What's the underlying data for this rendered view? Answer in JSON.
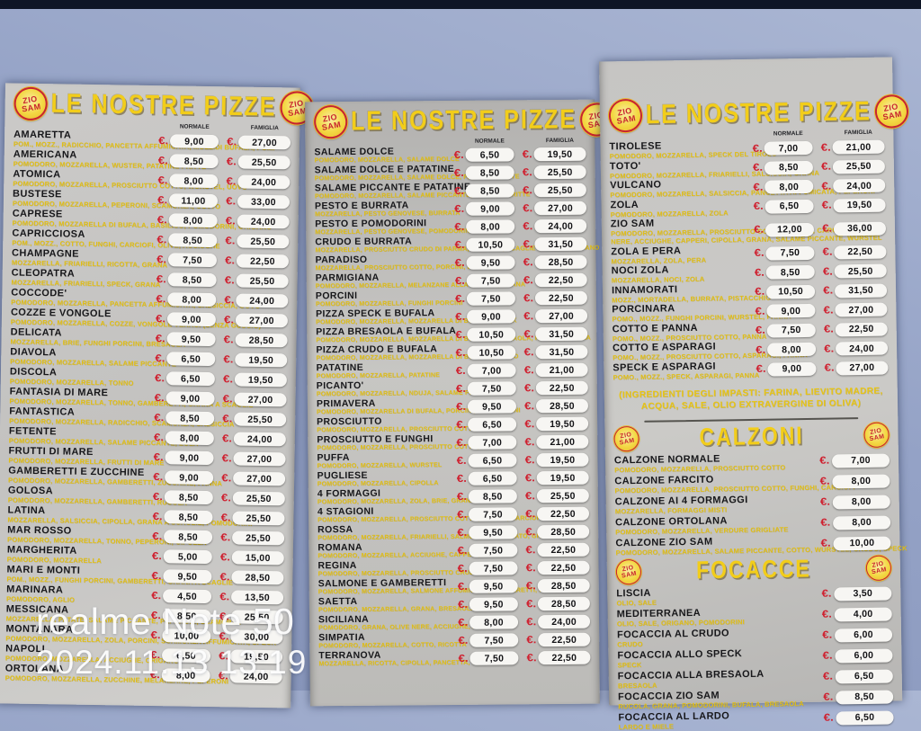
{
  "labels": {
    "normale": "NORMALE",
    "famiglia": "FAMIGLIA",
    "currency": "€."
  },
  "logo": {
    "top": "ZIO",
    "bottom": "SAM"
  },
  "watermark": {
    "model": "realme Note 50",
    "timestamp": "2024.11.13 13:19"
  },
  "colors": {
    "accent_yellow": "#f2cd1a",
    "accent_red": "#c8242f",
    "pill_white": "#f7f6f3",
    "wall_blue": "#94a2c6",
    "top_bar_navy": "#0e1526",
    "panel_grey": "#c5c4c2",
    "name_black": "#17171a"
  },
  "panel_left": {
    "title": "LE NOSTRE PIZZE",
    "items": [
      {
        "name": "AMARETTA",
        "ing": "POM., MOZZ., RADICCHIO, PANCETTA AFFUMICATA, MOZZ.DI BUFALA, POM.",
        "n": "9,00",
        "f": "27,00"
      },
      {
        "name": "AMERICANA",
        "ing": "POMODORO, MOZZARELLA, WUSTER, PATATINE FRITTE",
        "n": "8,50",
        "f": "25,50"
      },
      {
        "name": "ATOMICA",
        "ing": "POMODORO, MOZZARELLA, PROSCIUTTO COTTO, WURSTEL, UOVO",
        "n": "8,00",
        "f": "24,00"
      },
      {
        "name": "BUSTESE",
        "ing": "POMODORO, MOZZARELLA, PEPERONI, SCAMORZA, COTTO",
        "n": "11,00",
        "f": "33,00"
      },
      {
        "name": "CAPRESE",
        "ing": "POMODORO, MOZZARELLA DI BUFALA, BASILICO, POMODORINI, ORIGANO",
        "n": "8,00",
        "f": "24,00"
      },
      {
        "name": "CAPRICCIOSA",
        "ing": "POM., MOZZ., COTTO, FUNGHI, CARCIOFI, OLIVE, ACCIUGHE",
        "n": "8,50",
        "f": "25,50"
      },
      {
        "name": "CHAMPAGNE",
        "ing": "MOZZARELLA, FRIARIELLI, RICOTTA, GRANA",
        "n": "7,50",
        "f": "22,50"
      },
      {
        "name": "CLEOPATRA",
        "ing": "MOZZARELLA, FRIARIELLI, SPECK, GRANA",
        "n": "8,50",
        "f": "25,50"
      },
      {
        "name": "COCCODE'",
        "ing": "POMODORO, MOZZARELLA, PANCETTA AFFUMICATA, SALSICCIA, UOVO",
        "n": "8,00",
        "f": "24,00"
      },
      {
        "name": "COZZE E VONGOLE",
        "ing": "POMODORO, MOZZARELLA, COZZE, VONGOLE VERACI (SENZA GUSCIO)",
        "n": "9,00",
        "f": "27,00"
      },
      {
        "name": "DELICATA",
        "ing": "MOZZARELLA, BRIE, FUNGHI PORCINI, BRESAOLA",
        "n": "9,50",
        "f": "28,50"
      },
      {
        "name": "DIAVOLA",
        "ing": "POMODORO, MOZZARELLA, SALAME PICCANTE",
        "n": "6,50",
        "f": "19,50"
      },
      {
        "name": "DISCOLA",
        "ing": "POMODORO, MOZZARELLA, TONNO",
        "n": "6,50",
        "f": "19,50"
      },
      {
        "name": "FANTASIA DI MARE",
        "ing": "POMODORO, MOZZARELLA, TONNO, GAMBERETTI, GRANA A SCAGLIE",
        "n": "9,00",
        "f": "27,00"
      },
      {
        "name": "FANTASTICA",
        "ing": "POMODORO, MOZZARELLA, RADICCHIO, SCAMORZA, SALSICCIA",
        "n": "8,50",
        "f": "25,50"
      },
      {
        "name": "FETENTE",
        "ing": "POMODORO, MOZZARELLA, SALAME PICCANTE, ZOLA",
        "n": "8,00",
        "f": "24,00"
      },
      {
        "name": "FRUTTI DI MARE",
        "ing": "POMODORO, MOZZARELLA, FRUTTI DI MARE",
        "n": "9,00",
        "f": "27,00"
      },
      {
        "name": "GAMBERETTI E ZUCCHINE",
        "ing": "POMODORO, MOZZARELLA, GAMBERETTI, ZUCCHINE, PANNA",
        "n": "9,00",
        "f": "27,00"
      },
      {
        "name": "GOLOSA",
        "ing": "POMODORO, MOZZARELLA, GAMBERETTI, RUCOLA",
        "n": "8,50",
        "f": "25,50"
      },
      {
        "name": "LATINA",
        "ing": "MOZZARELLA, SALSICCIA, CIPOLLA, GRANA A SCAGLIE, POMODORINI",
        "n": "8,50",
        "f": "25,50"
      },
      {
        "name": "MAR ROSSO",
        "ing": "POMODORO, MOZZARELLA, TONNO, PEPERONI, CIPOLLA",
        "n": "8,50",
        "f": "25,50"
      },
      {
        "name": "MARGHERITA",
        "ing": "POMODORO, MOZZARELLA",
        "n": "5,00",
        "f": "15,00"
      },
      {
        "name": "MARI E MONTI",
        "ing": "POM., MOZZ., FUNGHI PORCINI, GAMBERETTI, GRANA A SCAGLIE",
        "n": "9,50",
        "f": "28,50"
      },
      {
        "name": "MARINARA",
        "ing": "POMODORO, AGLIO",
        "n": "4,50",
        "f": "13,50"
      },
      {
        "name": "MESSICANA",
        "ing": "MOZZARELLA, PATATE, SALAME PICCANTE, PEPERONI, SCAMORZA",
        "n": "8,50",
        "f": "25,50"
      },
      {
        "name": "MONTANARA",
        "ing": "POMODORO, MOZZARELLA, ZOLA, PORCINI, SCAMORZA AFFUMICATA, SPECK",
        "n": "10,00",
        "f": "30,00"
      },
      {
        "name": "NAPOLI",
        "ing": "POMODORO, MOZZARELLA, ACCIUGHE, ORIGANO",
        "n": "6,50",
        "f": "19,50"
      },
      {
        "name": "ORTOLANA",
        "ing": "POMODORO, MOZZARELLA, ZUCCHINE, MELANZANE, PEPERONI",
        "n": "8,00",
        "f": "24,00"
      }
    ]
  },
  "panel_middle": {
    "title": "LE NOSTRE PIZZE",
    "items": [
      {
        "name": "SALAME DOLCE",
        "ing": "POMODORO, MOZZARELLA, SALAME DOLCE",
        "n": "6,50",
        "f": "19,50"
      },
      {
        "name": "SALAME DOLCE E PATATINE",
        "ing": "POMODORO, MOZZARELLA, SALAME DOLCE, PATATINE FRITTE",
        "n": "8,50",
        "f": "25,50"
      },
      {
        "name": "SALAME PICCANTE E PATATINE",
        "ing": "POMODORO, MOZZARELLA, SALAME PICCANTE, PATATINE FRITTE",
        "n": "8,50",
        "f": "25,50"
      },
      {
        "name": "PESTO E BURRATA",
        "ing": "MOZZARELLA, PESTO GENOVESE, BURRATA",
        "n": "9,00",
        "f": "27,00"
      },
      {
        "name": "PESTO E POMODORINI",
        "ing": "MOZZARELLA, PESTO GENOVESE, POMODORINI",
        "n": "8,00",
        "f": "24,00"
      },
      {
        "name": "CRUDO E BURRATA",
        "ing": "MOZZARELLA, PROSCIUTTO CRUDO DI PARMA, BURRATA, SCAGLIE DI GRANA PADANO",
        "n": "10,50",
        "f": "31,50"
      },
      {
        "name": "PARADISO",
        "ing": "MOZZARELLA, PROSCIUTTO COTTO, PORCINI, BRIE",
        "n": "9,50",
        "f": "28,50"
      },
      {
        "name": "PARMIGIANA",
        "ing": "POMODORO, MOZZARELLA, MELANZANE ALLA GRIGLIA, GRANA",
        "n": "7,50",
        "f": "22,50"
      },
      {
        "name": "PORCINI",
        "ing": "POMODORO, MOZZARELLA, FUNGHI PORCINI",
        "n": "7,50",
        "f": "22,50"
      },
      {
        "name": "PIZZA SPECK E BUFALA",
        "ing": "POMODORO, MOZZARELLA, MOZZARELLA DI BUFALA, SPECK",
        "n": "9,00",
        "f": "27,00"
      },
      {
        "name": "PIZZA BRESAOLA E BUFALA",
        "ing": "POMODORO, MOZZARELLA, MOZZARELLA DI BUFALA, BRESAOLA, RUCOLA, GRANA",
        "n": "10,50",
        "f": "31,50"
      },
      {
        "name": "PIZZA CRUDO E BUFALA",
        "ing": "POMODORO, MOZZARELLA, MOZZARELLA DI BUFALA, CRUDO",
        "n": "10,50",
        "f": "31,50"
      },
      {
        "name": "PATATINE",
        "ing": "POMODORO, MOZZARELLA, PATATINE",
        "n": "7,00",
        "f": "21,00"
      },
      {
        "name": "PICANTO'",
        "ing": "POMODORO, MOZZARELLA, NDUJA, SALAME PICCANTE",
        "n": "7,50",
        "f": "22,50"
      },
      {
        "name": "PRIMAVERA",
        "ing": "POMODORO, MOZZARELLA DI BUFALA, PORCINI, POMODORINI",
        "n": "9,50",
        "f": "28,50"
      },
      {
        "name": "PROSCIUTTO",
        "ing": "POMODORO, MOZZARELLA, PROSCIUTTO COTTO",
        "n": "6,50",
        "f": "19,50"
      },
      {
        "name": "PROSCIUTTO E FUNGHI",
        "ing": "POMODORO, MOZZARELLA, PROSCIUTTO COTTO, FUNGHI",
        "n": "7,00",
        "f": "21,00"
      },
      {
        "name": "PUFFA",
        "ing": "POMODORO, MOZZARELLA, WURSTEL",
        "n": "6,50",
        "f": "19,50"
      },
      {
        "name": "PUGLIESE",
        "ing": "POMODORO, MOZZARELLA, CIPOLLA",
        "n": "6,50",
        "f": "19,50"
      },
      {
        "name": "4 FORMAGGI",
        "ing": "POMODORO, MOZZARELLA, ZOLA, BRIE, GRANA",
        "n": "8,50",
        "f": "25,50"
      },
      {
        "name": "4 STAGIONI",
        "ing": "POMODORO, MOZZARELLA, PROSCIUTTO COTTO, FUNGHI, CARCIOFI",
        "n": "7,50",
        "f": "22,50"
      },
      {
        "name": "ROSSA",
        "ing": "POMODORO, MOZZARELLA, FRIARIELLI, SALMONE AFFUMICATO, GRANA",
        "n": "9,50",
        "f": "28,50"
      },
      {
        "name": "ROMANA",
        "ing": "POMODORO, MOZZARELLA, ACCIUGHE, CAPPERI, ORIGANO",
        "n": "7,50",
        "f": "22,50"
      },
      {
        "name": "REGINA",
        "ing": "POMODORO, MOZZARELLA, PROSCIUTTO CRUDO DI PARMA",
        "n": "7,50",
        "f": "22,50"
      },
      {
        "name": "SALMONE E GAMBERETTI",
        "ing": "POMODORO, MOZZARELLA, SALMONE AFFUMICATO, GAMBERETTI, PANNA",
        "n": "9,50",
        "f": "28,50"
      },
      {
        "name": "SAETTA",
        "ing": "POMODORO, MOZZARELLA, GRANA, BRESAOLA",
        "n": "9,50",
        "f": "28,50"
      },
      {
        "name": "SICILIANA",
        "ing": "POMODORO, GRANA, OLIVE NERE, ACCIUGHE, AGLIO",
        "n": "8,00",
        "f": "24,00"
      },
      {
        "name": "SIMPATIA",
        "ing": "POMODORO, MOZZARELLA, COTTO, RICOTTA",
        "n": "7,50",
        "f": "22,50"
      },
      {
        "name": "TERRANOVA",
        "ing": "MOZZARELLA, RICOTTA, CIPOLLA, PANCETTA, ORIGANO",
        "n": "7,50",
        "f": "22,50"
      }
    ]
  },
  "panel_right": {
    "title": "LE NOSTRE PIZZE",
    "items": [
      {
        "name": "TIROLESE",
        "ing": "POMODORO, MOZZARELLA, SPECK DEL TIROLO",
        "n": "7,00",
        "f": "21,00"
      },
      {
        "name": "TOTO'",
        "ing": "POMODORO, MOZZARELLA, FRIARIELLI, SALSICCIA, GRANA",
        "n": "8,50",
        "f": "25,50"
      },
      {
        "name": "VULCANO",
        "ing": "POMODORO, MOZZARELLA, SALSICCIA, PANCETTA AFFUMICATA, PEPERONI",
        "n": "8,00",
        "f": "24,00"
      },
      {
        "name": "ZOLA",
        "ing": "POMODORO, MOZZARELLA, ZOLA",
        "n": "6,50",
        "f": "19,50"
      },
      {
        "name": "ZIO SAM",
        "ing": "POMODORO, MOZZARELLA, PROSCIUTTO COTTO, FUNGHI, CARCIOFI, OLIVE",
        "ing2": "NERE, ACCIUGHE, CAPPERI, CIPOLLA, GRANA, SALAME PICCANTE, WURSTEL",
        "n": "12,00",
        "f": "36,00"
      },
      {
        "name": "ZOLA E PERA",
        "ing": "MOZZARELLA, ZOLA, PERA",
        "n": "7,50",
        "f": "22,50"
      },
      {
        "name": "NOCI ZOLA",
        "ing": "MOZZARELLA, NOCI, ZOLA",
        "n": "8,50",
        "f": "25,50"
      },
      {
        "name": "INNAMORATI",
        "ing": "MOZZ., MORTADELLA, BURRATA, PISTACCHIO",
        "n": "10,50",
        "f": "31,50"
      },
      {
        "name": "PORCINARA",
        "ing": "POMO., MOZZ., FUNGHI PORCINI, WURSTEL, PANNA",
        "n": "9,00",
        "f": "27,00"
      },
      {
        "name": "COTTO E PANNA",
        "ing": "POMO., MOZZ., PROSCIUTTO COTTO, PANNA",
        "n": "7,50",
        "f": "22,50"
      },
      {
        "name": "COTTO E ASPARAGI",
        "ing": "POMO., MOZZ., PROSCIUTTO COTTO, ASPARAGI, PANNA",
        "n": "8,00",
        "f": "24,00"
      },
      {
        "name": "SPECK E ASPARAGI",
        "ing": "POMO., MOZZ., SPECK, ASPARAGI, PANNA",
        "n": "9,00",
        "f": "27,00"
      }
    ],
    "note1": "(INGREDIENTI DEGLI IMPASTI: FARINA, LIEVITO MADRE,",
    "note2": "ACQUA, SALE, OLIO EXTRAVERGINE DI OLIVA)",
    "calzoni": {
      "title": "CALZONI",
      "items": [
        {
          "name": "CALZONE NORMALE",
          "ing": "POMODORO, MOZZARELLA, PROSCIUTTO COTTO",
          "price": "7,00"
        },
        {
          "name": "CALZONE FARCITO",
          "ing": "POMODORO, MOZZARELLA, PROSCIUTTO COTTO, FUNGHI, CARCIOFI",
          "price": "8,00"
        },
        {
          "name": "CALZONE AI 4 FORMAGGI",
          "ing": "MOZZARELLA, FORMAGGI MISTI",
          "price": "8,00"
        },
        {
          "name": "CALZONE ORTOLANA",
          "ing": "POMODORO, MOZZARELLA, VERDURE GRIGLIATE",
          "price": "8,00"
        },
        {
          "name": "CALZONE ZIO SAM",
          "ing": "POMODORO, MOZZARELLA, SALAME PICCANTE, COTTO, WURSTEL, CRUDO, SPECK",
          "price": "10,00"
        }
      ]
    },
    "focacce": {
      "title": "FOCACCE",
      "items": [
        {
          "name": "LISCIA",
          "ing": "OLIO, SALE",
          "price": "3,50"
        },
        {
          "name": "MEDITERRANEA",
          "ing": "OLIO, SALE, ORIGANO, POMODORINI",
          "price": "4,00"
        },
        {
          "name": "FOCACCIA AL CRUDO",
          "ing": "CRUDO",
          "price": "6,00"
        },
        {
          "name": "FOCACCIA ALLO SPECK",
          "ing": "SPECK",
          "price": "6,00"
        },
        {
          "name": "FOCACCIA ALLA BRESAOLA",
          "ing": "BRESAOLA",
          "price": "6,50"
        },
        {
          "name": "FOCACCIA ZIO SAM",
          "ing": "RUCOLA, GRANA, POMODORINI, BUFALA, BRESAOLA",
          "price": "8,50"
        },
        {
          "name": "FOCACCIA AL LARDO",
          "ing": "LARDO E MIELE",
          "price": "6,50"
        }
      ]
    }
  }
}
